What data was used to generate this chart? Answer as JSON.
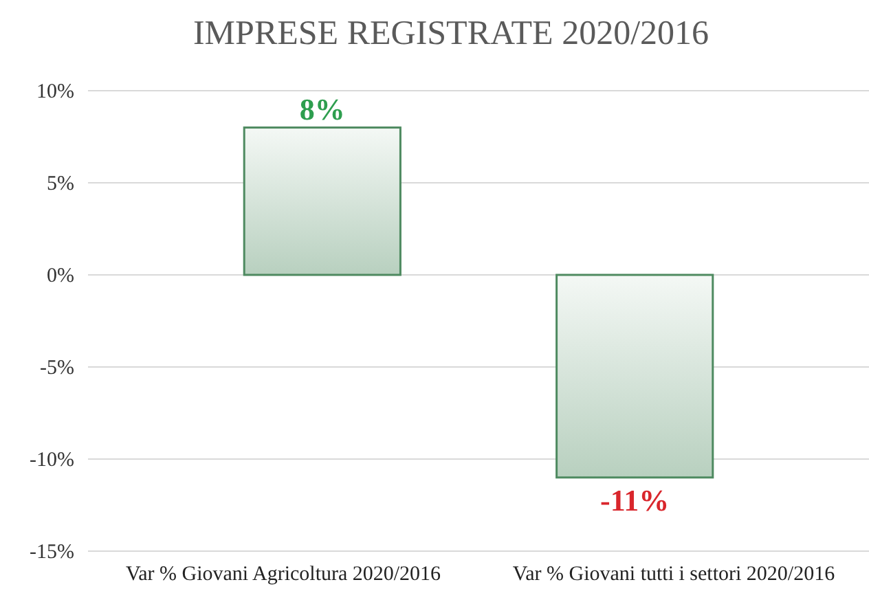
{
  "chart_data": {
    "type": "bar",
    "title": "IMPRESE REGISTRATE 2020/2016",
    "categories": [
      "Var % Giovani Agricoltura 2020/2016",
      "Var % Giovani tutti i settori 2020/2016"
    ],
    "values": [
      8,
      -11
    ],
    "value_labels": [
      "8%",
      "-11%"
    ],
    "color": "#4e8a60",
    "ylim": [
      -15,
      10
    ],
    "yticks": [
      {
        "value": -15,
        "label": "-15%"
      },
      {
        "value": -10,
        "label": "-10%"
      },
      {
        "value": -5,
        "label": "-5%"
      },
      {
        "value": 0,
        "label": "0%"
      },
      {
        "value": 5,
        "label": "5%"
      },
      {
        "value": 10,
        "label": "10%"
      }
    ],
    "grid": "y"
  }
}
